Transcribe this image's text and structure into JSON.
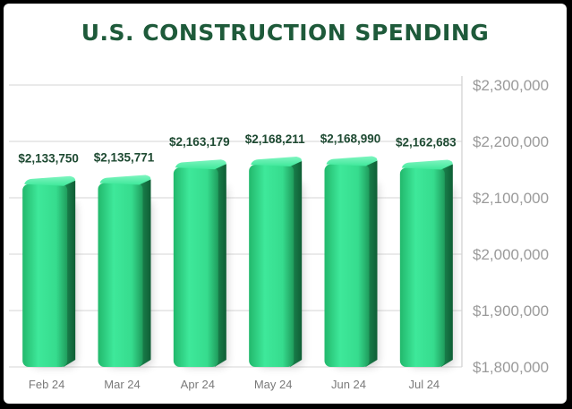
{
  "chart_data": {
    "type": "bar",
    "title": "U.S. CONSTRUCTION SPENDING",
    "categories": [
      "Feb 24",
      "Mar 24",
      "Apr 24",
      "May 24",
      "Jun 24",
      "Jul 24"
    ],
    "values": [
      2133750,
      2135771,
      2163179,
      2168211,
      2168990,
      2162683
    ],
    "data_labels": [
      "$2,133,750",
      "$2,135,771",
      "$2,163,179",
      "$2,168,211",
      "$2,168,990",
      "$2,162,683"
    ],
    "yticks": [
      1800000,
      1900000,
      2000000,
      2100000,
      2200000,
      2300000
    ],
    "ytick_labels": [
      "$1,800,000",
      "$1,900,000",
      "$2,000,000",
      "$2,100,000",
      "$2,200,000",
      "$2,300,000"
    ],
    "ylim": [
      1800000,
      2300000
    ],
    "xlabel": "",
    "ylabel": "",
    "grid": true,
    "y_axis_position": "right",
    "bar_color": "#3ee89a"
  }
}
